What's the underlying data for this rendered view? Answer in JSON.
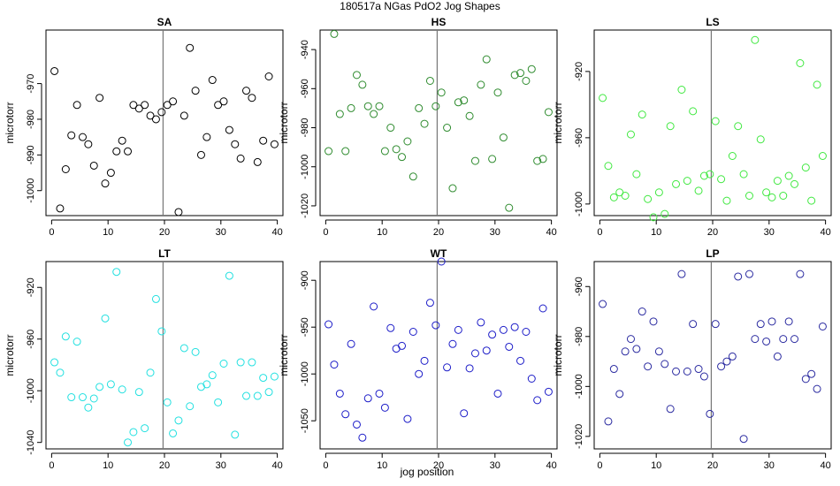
{
  "figure": {
    "title": "180517a   NGas PdO2 Jog Shapes",
    "xlabel": "jog position"
  },
  "chart_data": [
    {
      "type": "scatter",
      "title": "SA",
      "ylabel": "microtorr",
      "color": "#000000",
      "xlim": [
        -1,
        41
      ],
      "ylim": [
        -1007,
        -955
      ],
      "xticks": [
        0,
        10,
        20,
        30,
        40
      ],
      "yticks": [
        -1000,
        -990,
        -980,
        -970
      ],
      "vline": 19.75,
      "x": [
        0.5,
        1.5,
        2.5,
        3.5,
        4.5,
        5.5,
        6.5,
        7.5,
        8.5,
        9.5,
        10.5,
        11.5,
        12.5,
        13.5,
        14.5,
        15.5,
        16.5,
        17.5,
        18.5,
        19.5,
        20.5,
        21.5,
        22.5,
        23.5,
        24.5,
        25.5,
        26.5,
        27.5,
        28.5,
        29.5,
        30.5,
        31.5,
        32.5,
        33.5,
        34.5,
        35.5,
        36.5,
        37.5,
        38.5,
        39.5
      ],
      "y": [
        -966.5,
        -1005,
        -994,
        -984.5,
        -976,
        -985,
        -987,
        -993,
        -974,
        -998,
        -995,
        -989,
        -986,
        -989,
        -976,
        -977,
        -976,
        -979,
        -980,
        -978,
        -976,
        -975,
        -1006,
        -979,
        -960,
        -972,
        -990,
        -985,
        -969,
        -976,
        -975,
        -983,
        -987,
        -991,
        -972,
        -974,
        -992,
        -986,
        -968,
        -987
      ]
    },
    {
      "type": "scatter",
      "title": "HS",
      "ylabel": "microtorr",
      "color": "#2e8b2e",
      "xlim": [
        -1,
        41
      ],
      "ylim": [
        -1025,
        -930
      ],
      "xticks": [
        0,
        10,
        20,
        30,
        40
      ],
      "yticks": [
        -1020,
        -1000,
        -980,
        -960,
        -940
      ],
      "vline": 19.75,
      "x": [
        0.5,
        1.5,
        2.5,
        3.5,
        4.5,
        5.5,
        6.5,
        7.5,
        8.5,
        9.5,
        10.5,
        11.5,
        12.5,
        13.5,
        14.5,
        15.5,
        16.5,
        17.5,
        18.5,
        19.5,
        20.5,
        21.5,
        22.5,
        23.5,
        24.5,
        25.5,
        26.5,
        27.5,
        28.5,
        29.5,
        30.5,
        31.5,
        32.5,
        33.5,
        34.5,
        35.5,
        36.5,
        37.5,
        38.5,
        39.5
      ],
      "y": [
        -992,
        -932,
        -973,
        -992,
        -970,
        -953,
        -958,
        -969,
        -973,
        -969,
        -992,
        -980,
        -991,
        -995,
        -987,
        -1005,
        -970,
        -978,
        -956,
        -969,
        -962,
        -980,
        -1011,
        -967,
        -966,
        -974,
        -997,
        -958,
        -945,
        -996,
        -962,
        -985,
        -1021,
        -953,
        -952,
        -956,
        -950,
        -997,
        -996,
        -972
      ]
    },
    {
      "type": "scatter",
      "title": "LS",
      "ylabel": "microtorr",
      "color": "#3ee83e",
      "xlim": [
        -1,
        41
      ],
      "ylim": [
        -1007,
        -895
      ],
      "xticks": [
        0,
        10,
        20,
        30,
        40
      ],
      "yticks": [
        -1000,
        -960,
        -920
      ],
      "vline": 19.75,
      "x": [
        0.5,
        1.5,
        2.5,
        3.5,
        4.5,
        5.5,
        6.5,
        7.5,
        8.5,
        9.5,
        10.5,
        11.5,
        12.5,
        13.5,
        14.5,
        15.5,
        16.5,
        17.5,
        18.5,
        19.5,
        20.5,
        21.5,
        22.5,
        23.5,
        24.5,
        25.5,
        26.5,
        27.5,
        28.5,
        29.5,
        30.5,
        31.5,
        32.5,
        33.5,
        34.5,
        35.5,
        36.5,
        37.5,
        38.5,
        39.5
      ],
      "y": [
        -936,
        -977,
        -996,
        -993,
        -995,
        -958,
        -982,
        -946,
        -997,
        -1008,
        -993,
        -1006,
        -953,
        -988,
        -931,
        -986,
        -944,
        -992,
        -983,
        -982,
        -950,
        -985,
        -998,
        -971,
        -953,
        -982,
        -995,
        -901,
        -961,
        -993,
        -996,
        -986,
        -995,
        -983,
        -988,
        -915,
        -978,
        -998,
        -928,
        -971
      ]
    },
    {
      "type": "scatter",
      "title": "LT",
      "ylabel": "microtorr",
      "color": "#22e0e0",
      "xlim": [
        -1,
        41
      ],
      "ylim": [
        -1045,
        -900
      ],
      "xticks": [
        0,
        10,
        20,
        30,
        40
      ],
      "yticks": [
        -1040,
        -1000,
        -960,
        -920
      ],
      "vline": 19.75,
      "x": [
        0.5,
        1.5,
        2.5,
        3.5,
        4.5,
        5.5,
        6.5,
        7.5,
        8.5,
        9.5,
        10.5,
        11.5,
        12.5,
        13.5,
        14.5,
        15.5,
        16.5,
        17.5,
        18.5,
        19.5,
        20.5,
        21.5,
        22.5,
        23.5,
        24.5,
        25.5,
        26.5,
        27.5,
        28.5,
        29.5,
        30.5,
        31.5,
        32.5,
        33.5,
        34.5,
        35.5,
        36.5,
        37.5,
        38.5,
        39.5
      ],
      "y": [
        -978,
        -986,
        -958,
        -1005,
        -962,
        -1005,
        -1013,
        -1006,
        -997,
        -944,
        -995,
        -908,
        -999,
        -1040,
        -1032,
        -1001,
        -1029,
        -986,
        -929,
        -954,
        -1009,
        -1033,
        -1023,
        -967,
        -1012,
        -970,
        -997,
        -995,
        -988,
        -1009,
        -979,
        -911,
        -1034,
        -978,
        -1004,
        -978,
        -1004,
        -990,
        -1001,
        -989
      ]
    },
    {
      "type": "scatter",
      "title": "WT",
      "ylabel": "microtorr",
      "color": "#1c1cc8",
      "xlim": [
        -1,
        41
      ],
      "ylim": [
        -1080,
        -880
      ],
      "xticks": [
        0,
        10,
        20,
        30,
        40
      ],
      "yticks": [
        -1050,
        -1000,
        -950,
        -900
      ],
      "vline": 19.75,
      "x": [
        0.5,
        1.5,
        2.5,
        3.5,
        4.5,
        5.5,
        6.5,
        7.5,
        8.5,
        9.5,
        10.5,
        11.5,
        12.5,
        13.5,
        14.5,
        15.5,
        16.5,
        17.5,
        18.5,
        19.5,
        20.5,
        21.5,
        22.5,
        23.5,
        24.5,
        25.5,
        26.5,
        27.5,
        28.5,
        29.5,
        30.5,
        31.5,
        32.5,
        33.5,
        34.5,
        35.5,
        36.5,
        37.5,
        38.5,
        39.5
      ],
      "y": [
        -947,
        -990,
        -1021,
        -1043,
        -968,
        -1054,
        -1068,
        -1026,
        -928,
        -1021,
        -1036,
        -951,
        -973,
        -970,
        -1048,
        -955,
        -1000,
        -986,
        -924,
        -948,
        -880,
        -993,
        -968,
        -953,
        -1042,
        -994,
        -978,
        -945,
        -975,
        -958,
        -1021,
        -953,
        -971,
        -950,
        -986,
        -955,
        -1005,
        -1028,
        -930,
        -1019
      ]
    },
    {
      "type": "scatter",
      "title": "LP",
      "ylabel": "microtorr",
      "color": "#2a2aa0",
      "xlim": [
        -1,
        41
      ],
      "ylim": [
        -1025,
        -950
      ],
      "xticks": [
        0,
        10,
        20,
        30,
        40
      ],
      "yticks": [
        -1020,
        -1000,
        -980,
        -960
      ],
      "vline": 19.75,
      "x": [
        0.5,
        1.5,
        2.5,
        3.5,
        4.5,
        5.5,
        6.5,
        7.5,
        8.5,
        9.5,
        10.5,
        11.5,
        12.5,
        13.5,
        14.5,
        15.5,
        16.5,
        17.5,
        18.5,
        19.5,
        20.5,
        21.5,
        22.5,
        23.5,
        24.5,
        25.5,
        26.5,
        27.5,
        28.5,
        29.5,
        30.5,
        31.5,
        32.5,
        33.5,
        34.5,
        35.5,
        36.5,
        37.5,
        38.5,
        39.5
      ],
      "y": [
        -967,
        -1014,
        -993,
        -1003,
        -986,
        -981,
        -985,
        -970,
        -992,
        -974,
        -986,
        -991,
        -1009,
        -994,
        -955,
        -994,
        -975,
        -993,
        -996,
        -1011,
        -975,
        -992,
        -990,
        -988,
        -956,
        -1021,
        -955,
        -981,
        -975,
        -982,
        -974,
        -988,
        -981,
        -974,
        -981,
        -955,
        -997,
        -995,
        -1001,
        -976
      ]
    }
  ]
}
